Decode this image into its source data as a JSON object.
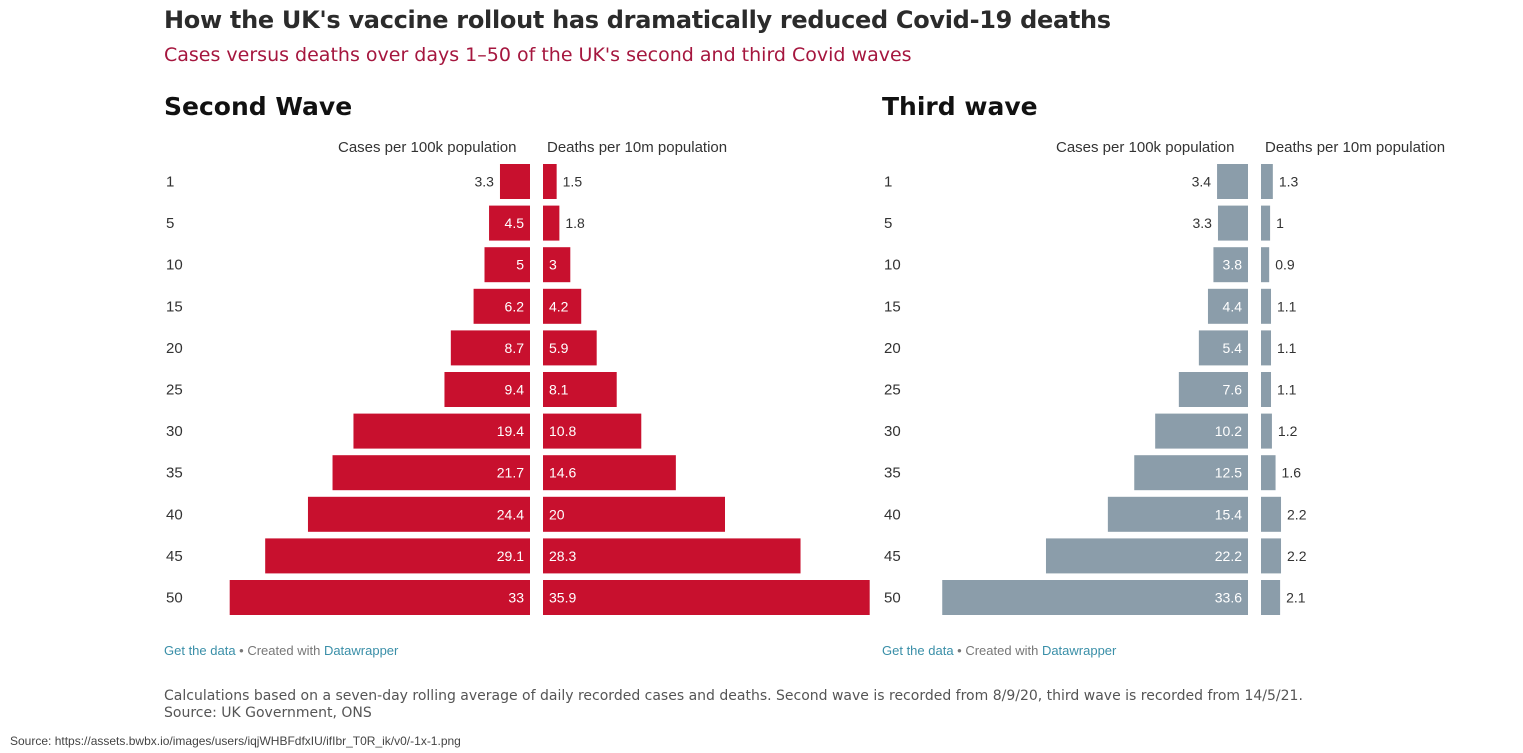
{
  "title": "How the UK's vaccine rollout has dramatically reduced Covid-19 deaths",
  "subtitle": "Cases versus deaths over days 1–50 of the UK's second and third Covid waves",
  "chart_data": [
    {
      "type": "bar",
      "title": "Second Wave",
      "categories": [
        "1",
        "5",
        "10",
        "15",
        "20",
        "25",
        "30",
        "35",
        "40",
        "45",
        "50"
      ],
      "series": [
        {
          "name": "Cases per 100k population",
          "values": [
            3.3,
            4.5,
            5,
            6.2,
            8.7,
            9.4,
            19.4,
            21.7,
            24.4,
            29.1,
            33
          ]
        },
        {
          "name": "Deaths per 10m population",
          "values": [
            1.5,
            1.8,
            3,
            4.2,
            5.9,
            8.1,
            10.8,
            14.6,
            20,
            28.3,
            35.9
          ]
        }
      ],
      "color": "#c8102e"
    },
    {
      "type": "bar",
      "title": "Third wave",
      "categories": [
        "1",
        "5",
        "10",
        "15",
        "20",
        "25",
        "30",
        "35",
        "40",
        "45",
        "50"
      ],
      "series": [
        {
          "name": "Cases per 100k population",
          "values": [
            3.4,
            3.3,
            3.8,
            4.4,
            5.4,
            7.6,
            10.2,
            12.5,
            15.4,
            22.2,
            33.6
          ]
        },
        {
          "name": "Deaths per 10m population",
          "values": [
            1.3,
            1,
            0.9,
            1.1,
            1.1,
            1.1,
            1.2,
            1.6,
            2.2,
            2.2,
            2.1
          ]
        }
      ],
      "color": "#8b9daa"
    }
  ],
  "credit": {
    "get_data": "Get the data",
    "separator": " • Created with ",
    "tool": "Datawrapper"
  },
  "footnote": "Calculations based on a seven-day rolling average of daily recorded cases and deaths. Second wave is recorded from 8/9/20, third wave is recorded from 14/5/21.",
  "source": "Source: UK Government, ONS",
  "image_source": "Source: https://assets.bwbx.io/images/users/iqjWHBFdfxIU/ifIbr_T0R_ik/v0/-1x-1.png"
}
